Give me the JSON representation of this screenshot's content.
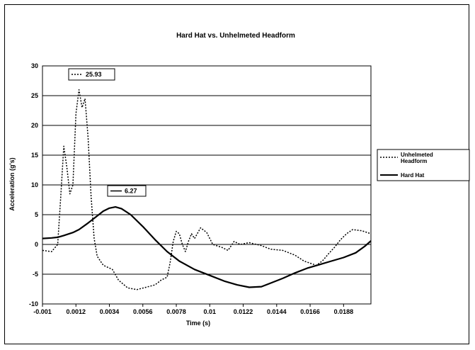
{
  "chart_data": {
    "type": "line",
    "title": "Hard Hat vs. Unhelmeted Headform",
    "xlabel": "Time (s)",
    "ylabel": "Acceleration (g's)",
    "xlim": [
      -0.001,
      0.0206
    ],
    "ylim": [
      -10,
      30
    ],
    "x_ticks": [
      "-0.001",
      "0.0012",
      "0.0034",
      "0.0056",
      "0.0078",
      "0.01",
      "0.0122",
      "0.0144",
      "0.0166",
      "0.0188"
    ],
    "y_ticks": [
      "30",
      "25",
      "20",
      "15",
      "10",
      "5",
      "0",
      "-5",
      "-10"
    ],
    "grid": "horizontal",
    "legend_position": "right",
    "series": [
      {
        "name": "Unhelmeted Headform",
        "style": "dotted",
        "points": [
          [
            -0.001,
            -1.0
          ],
          [
            -0.0004,
            -1.2
          ],
          [
            0.0,
            0.0
          ],
          [
            0.0002,
            8.0
          ],
          [
            0.0004,
            16.5
          ],
          [
            0.0006,
            13.0
          ],
          [
            0.0008,
            8.5
          ],
          [
            0.001,
            10.0
          ],
          [
            0.0012,
            22.0
          ],
          [
            0.0014,
            26.0
          ],
          [
            0.0016,
            23.0
          ],
          [
            0.0018,
            24.5
          ],
          [
            0.002,
            18.0
          ],
          [
            0.0022,
            8.0
          ],
          [
            0.0024,
            1.0
          ],
          [
            0.0026,
            -2.0
          ],
          [
            0.003,
            -3.5
          ],
          [
            0.0036,
            -4.2
          ],
          [
            0.004,
            -6.0
          ],
          [
            0.0046,
            -7.3
          ],
          [
            0.0052,
            -7.6
          ],
          [
            0.0058,
            -7.2
          ],
          [
            0.0064,
            -6.8
          ],
          [
            0.0068,
            -6.0
          ],
          [
            0.0072,
            -5.5
          ],
          [
            0.0074,
            -3.0
          ],
          [
            0.0076,
            0.5
          ],
          [
            0.0078,
            2.2
          ],
          [
            0.008,
            1.8
          ],
          [
            0.0082,
            0.0
          ],
          [
            0.0084,
            -1.2
          ],
          [
            0.0086,
            0.5
          ],
          [
            0.0088,
            1.8
          ],
          [
            0.009,
            1.0
          ],
          [
            0.0094,
            2.8
          ],
          [
            0.0098,
            2.0
          ],
          [
            0.0102,
            0.0
          ],
          [
            0.0108,
            -0.5
          ],
          [
            0.0112,
            -1.0
          ],
          [
            0.0116,
            0.5
          ],
          [
            0.012,
            0.0
          ],
          [
            0.0126,
            0.3
          ],
          [
            0.0134,
            -0.2
          ],
          [
            0.014,
            -0.8
          ],
          [
            0.0148,
            -1.0
          ],
          [
            0.0156,
            -1.8
          ],
          [
            0.0162,
            -2.8
          ],
          [
            0.017,
            -3.5
          ],
          [
            0.0174,
            -2.8
          ],
          [
            0.0178,
            -1.6
          ],
          [
            0.0182,
            -0.5
          ],
          [
            0.0186,
            0.8
          ],
          [
            0.019,
            1.8
          ],
          [
            0.0194,
            2.5
          ],
          [
            0.02,
            2.3
          ],
          [
            0.0206,
            1.8
          ]
        ]
      },
      {
        "name": "Hard Hat",
        "style": "solid",
        "points": [
          [
            -0.001,
            1.0
          ],
          [
            -0.0004,
            1.1
          ],
          [
            0.0,
            1.2
          ],
          [
            0.0004,
            1.5
          ],
          [
            0.001,
            2.0
          ],
          [
            0.0014,
            2.5
          ],
          [
            0.002,
            3.6
          ],
          [
            0.0026,
            4.8
          ],
          [
            0.003,
            5.6
          ],
          [
            0.0034,
            6.1
          ],
          [
            0.0038,
            6.3
          ],
          [
            0.0042,
            6.0
          ],
          [
            0.0048,
            5.0
          ],
          [
            0.0056,
            3.0
          ],
          [
            0.0064,
            0.8
          ],
          [
            0.0072,
            -1.2
          ],
          [
            0.008,
            -2.8
          ],
          [
            0.009,
            -4.2
          ],
          [
            0.01,
            -5.2
          ],
          [
            0.011,
            -6.2
          ],
          [
            0.0118,
            -6.8
          ],
          [
            0.0126,
            -7.2
          ],
          [
            0.0134,
            -7.1
          ],
          [
            0.014,
            -6.5
          ],
          [
            0.0148,
            -5.7
          ],
          [
            0.0156,
            -4.8
          ],
          [
            0.0164,
            -4.0
          ],
          [
            0.0172,
            -3.4
          ],
          [
            0.018,
            -2.8
          ],
          [
            0.0188,
            -2.2
          ],
          [
            0.0196,
            -1.4
          ],
          [
            0.0202,
            -0.3
          ],
          [
            0.0206,
            0.6
          ]
        ]
      }
    ],
    "annotations": [
      {
        "text": "25.93",
        "series": "Unhelmeted Headform",
        "style": "dotted"
      },
      {
        "text": "6.27",
        "series": "Hard Hat",
        "style": "solid"
      }
    ]
  }
}
